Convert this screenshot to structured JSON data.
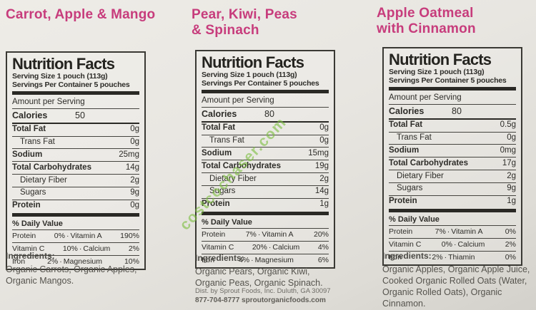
{
  "page": {
    "background": "#e8e6e1",
    "accent_pink": "#c73c7c",
    "watermark_green": "#7dbe40"
  },
  "watermark": {
    "text": "costcochaser.com"
  },
  "dv_separator": "·",
  "panels": [
    {
      "title_lines": [
        "Carrot, Apple & Mango"
      ],
      "nf": {
        "title": "Nutrition Facts",
        "serving_size": "Serving Size 1 pouch (113g)",
        "servings_per_container": "Servings Per Container 5 pouches",
        "amount_per_serving": "Amount per Serving",
        "calories_label": "Calories",
        "calories_value": "50",
        "rows": [
          {
            "label": "Total Fat",
            "value": "0g",
            "bold": true,
            "indent": false
          },
          {
            "label": "Trans Fat",
            "value": "0g",
            "bold": false,
            "indent": true
          },
          {
            "label": "Sodium",
            "value": "25mg",
            "bold": true,
            "indent": false
          },
          {
            "label": "Total Carbohydrates",
            "value": "14g",
            "bold": true,
            "indent": false
          },
          {
            "label": "Dietary Fiber",
            "value": "2g",
            "bold": false,
            "indent": true
          },
          {
            "label": "Sugars",
            "value": "9g",
            "bold": false,
            "indent": true
          },
          {
            "label": "Protein",
            "value": "0g",
            "bold": true,
            "indent": false
          }
        ],
        "dv_header": "% Daily Value",
        "dv_rows": [
          {
            "left": "Protein",
            "left_val": "0%",
            "right": "Vitamin A",
            "right_val": "190%"
          },
          {
            "left": "Vitamin C",
            "left_val": "10%",
            "right": "Calcium",
            "right_val": "2%"
          },
          {
            "left": "Iron",
            "left_val": "2%",
            "right": "Magnesium",
            "right_val": "10%"
          }
        ]
      },
      "ingredients_label": "Ingredients:",
      "ingredients_text": "Organic Carrots, Organic Apples, Organic Mangos.",
      "footer_lines": []
    },
    {
      "title_lines": [
        "Pear, Kiwi, Peas",
        "& Spinach"
      ],
      "nf": {
        "title": "Nutrition Facts",
        "serving_size": "Serving Size 1 pouch (113g)",
        "servings_per_container": "Servings Per Container 5 pouches",
        "amount_per_serving": "Amount per Serving",
        "calories_label": "Calories",
        "calories_value": "80",
        "rows": [
          {
            "label": "Total Fat",
            "value": "0g",
            "bold": true,
            "indent": false
          },
          {
            "label": "Trans Fat",
            "value": "0g",
            "bold": false,
            "indent": true
          },
          {
            "label": "Sodium",
            "value": "15mg",
            "bold": true,
            "indent": false
          },
          {
            "label": "Total Carbohydrates",
            "value": "19g",
            "bold": true,
            "indent": false
          },
          {
            "label": "Dietary Fiber",
            "value": "2g",
            "bold": false,
            "indent": true
          },
          {
            "label": "Sugars",
            "value": "14g",
            "bold": false,
            "indent": true
          },
          {
            "label": "Protein",
            "value": "1g",
            "bold": true,
            "indent": false
          }
        ],
        "dv_header": "% Daily Value",
        "dv_rows": [
          {
            "left": "Protein",
            "left_val": "7%",
            "right": "Vitamin A",
            "right_val": "20%"
          },
          {
            "left": "Vitamin C",
            "left_val": "20%",
            "right": "Calcium",
            "right_val": "4%"
          },
          {
            "left": "Iron",
            "left_val": "4%",
            "right": "Magnesium",
            "right_val": "6%"
          }
        ]
      },
      "ingredients_label": "Ingredients:",
      "ingredients_text": "Organic Pears, Organic Kiwi, Organic Peas, Organic Spinach.",
      "footer_lines": [
        {
          "text": "Dist. by Sprout Foods, Inc. Duluth, GA 30097",
          "bold": false
        },
        {
          "text": "877-704-8777 sproutorganicfoods.com",
          "bold": true
        }
      ]
    },
    {
      "title_lines": [
        "Apple Oatmeal",
        "with Cinnamon"
      ],
      "nf": {
        "title": "Nutrition Facts",
        "serving_size": "Serving Size 1 pouch (113g)",
        "servings_per_container": "Servings Per Container 5 pouches",
        "amount_per_serving": "Amount per Serving",
        "calories_label": "Calories",
        "calories_value": "80",
        "rows": [
          {
            "label": "Total Fat",
            "value": "0.5g",
            "bold": true,
            "indent": false
          },
          {
            "label": "Trans Fat",
            "value": "0g",
            "bold": false,
            "indent": true
          },
          {
            "label": "Sodium",
            "value": "0mg",
            "bold": true,
            "indent": false
          },
          {
            "label": "Total Carbohydrates",
            "value": "17g",
            "bold": true,
            "indent": false
          },
          {
            "label": "Dietary Fiber",
            "value": "2g",
            "bold": false,
            "indent": true
          },
          {
            "label": "Sugars",
            "value": "9g",
            "bold": false,
            "indent": true
          },
          {
            "label": "Protein",
            "value": "1g",
            "bold": true,
            "indent": false
          }
        ],
        "dv_header": "% Daily Value",
        "dv_rows": [
          {
            "left": "Protein",
            "left_val": "7%",
            "right": "Vitamin A",
            "right_val": "0%"
          },
          {
            "left": "Vitamin C",
            "left_val": "0%",
            "right": "Calcium",
            "right_val": "2%"
          },
          {
            "left": "Iron",
            "left_val": "2%",
            "right": "Thiamin",
            "right_val": "0%"
          }
        ]
      },
      "ingredients_label": "Ingredients:",
      "ingredients_text": "Organic Apples, Organic Apple Juice, Cooked Organic Rolled Oats (Water, Organic Rolled Oats), Organic Cinnamon.",
      "footer_lines": []
    }
  ]
}
